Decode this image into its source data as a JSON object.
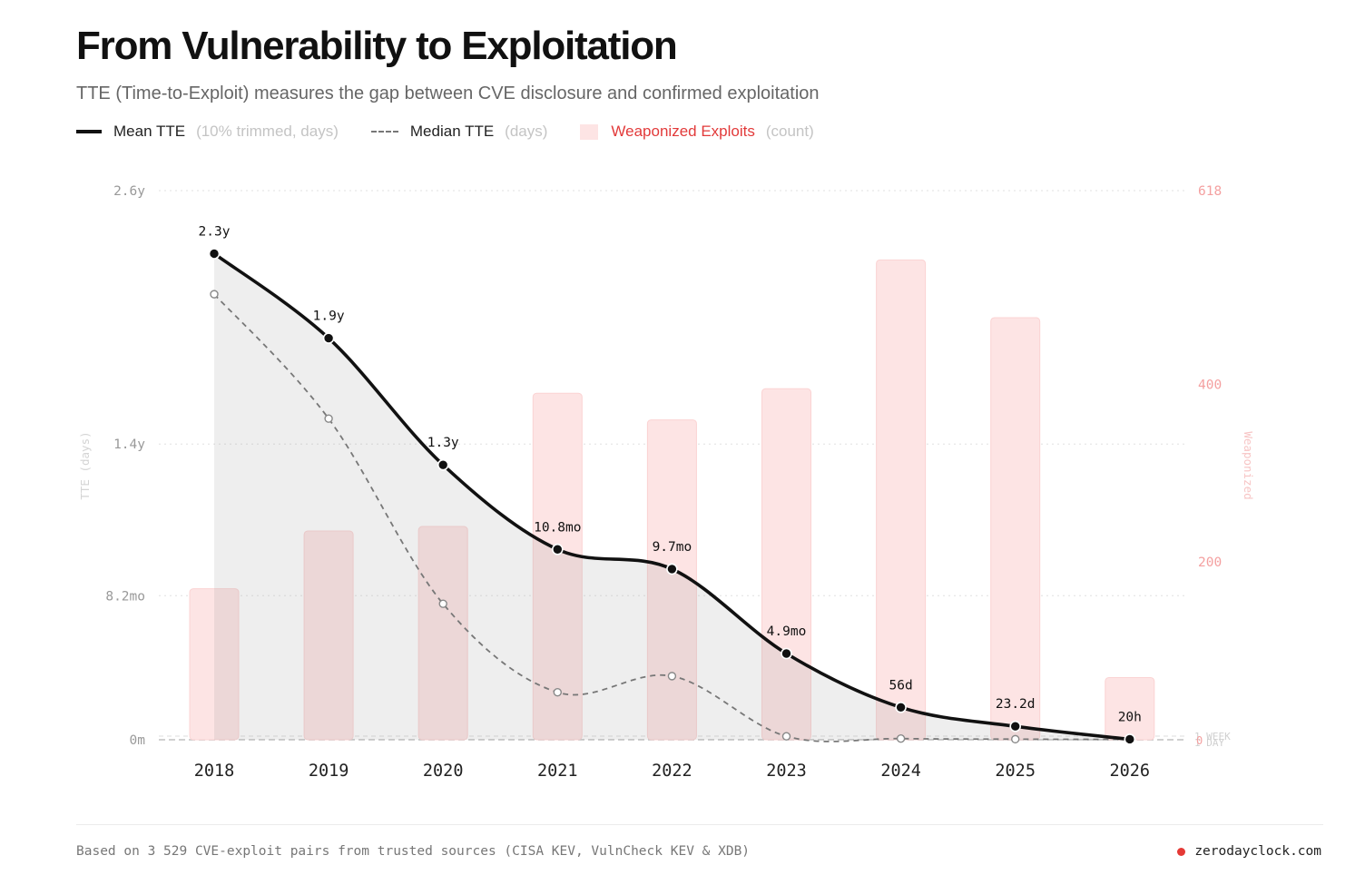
{
  "header": {
    "title": "From Vulnerability to Exploitation",
    "subtitle": "TTE (Time-to-Exploit) measures the gap between CVE disclosure and confirmed exploitation"
  },
  "legend": {
    "mean": {
      "name": "Mean TTE",
      "unit": "(10% trimmed, days)"
    },
    "median": {
      "name": "Median TTE",
      "unit": "(days)"
    },
    "bars": {
      "name": "Weaponized Exploits",
      "unit": "(count)"
    }
  },
  "footer": {
    "note": "Based on 3 529 CVE-exploit pairs from trusted sources (CISA KEV, VulnCheck KEV & XDB)",
    "brand": "zerodayclock.com"
  },
  "colors": {
    "mean_line": "#111111",
    "median_line": "#777777",
    "bars": "#fde4e4",
    "accent": "#e53935",
    "right_axis": "#f4a0a0"
  },
  "chart_data": {
    "type": "bar+line",
    "categories": [
      "2018",
      "2019",
      "2020",
      "2021",
      "2022",
      "2023",
      "2024",
      "2025",
      "2026"
    ],
    "y_left": {
      "label": "TTE (days)",
      "ticks": [
        {
          "value": 0,
          "label": "0m"
        },
        {
          "value": 249,
          "label": "8.2mo"
        },
        {
          "value": 511,
          "label": "1.4y"
        },
        {
          "value": 949,
          "label": "2.6y"
        }
      ],
      "range": [
        0,
        949
      ]
    },
    "y_right": {
      "label": "Weaponized",
      "ticks": [
        {
          "value": 0,
          "label": "0"
        },
        {
          "value": 200,
          "label": "200"
        },
        {
          "value": 400,
          "label": "400"
        },
        {
          "value": 618,
          "label": "618"
        }
      ],
      "range": [
        0,
        618
      ],
      "ref_labels": [
        "1 WEEK",
        "1 DAY"
      ]
    },
    "series": [
      {
        "name": "Mean TTE",
        "axis": "left",
        "values": [
          840,
          694,
          475,
          329,
          295,
          149,
          56,
          23.2,
          0.83
        ],
        "labels": [
          "2.3y",
          "1.9y",
          "1.3y",
          "10.8mo",
          "9.7mo",
          "4.9mo",
          "56d",
          "23.2d",
          "20h"
        ]
      },
      {
        "name": "Median TTE",
        "axis": "left",
        "values": [
          770,
          555,
          235,
          82,
          110,
          6,
          2,
          1,
          0.5
        ]
      },
      {
        "name": "Weaponized Exploits",
        "axis": "right",
        "values": [
          170,
          235,
          240,
          390,
          360,
          395,
          540,
          475,
          70
        ]
      }
    ],
    "grid": true
  }
}
